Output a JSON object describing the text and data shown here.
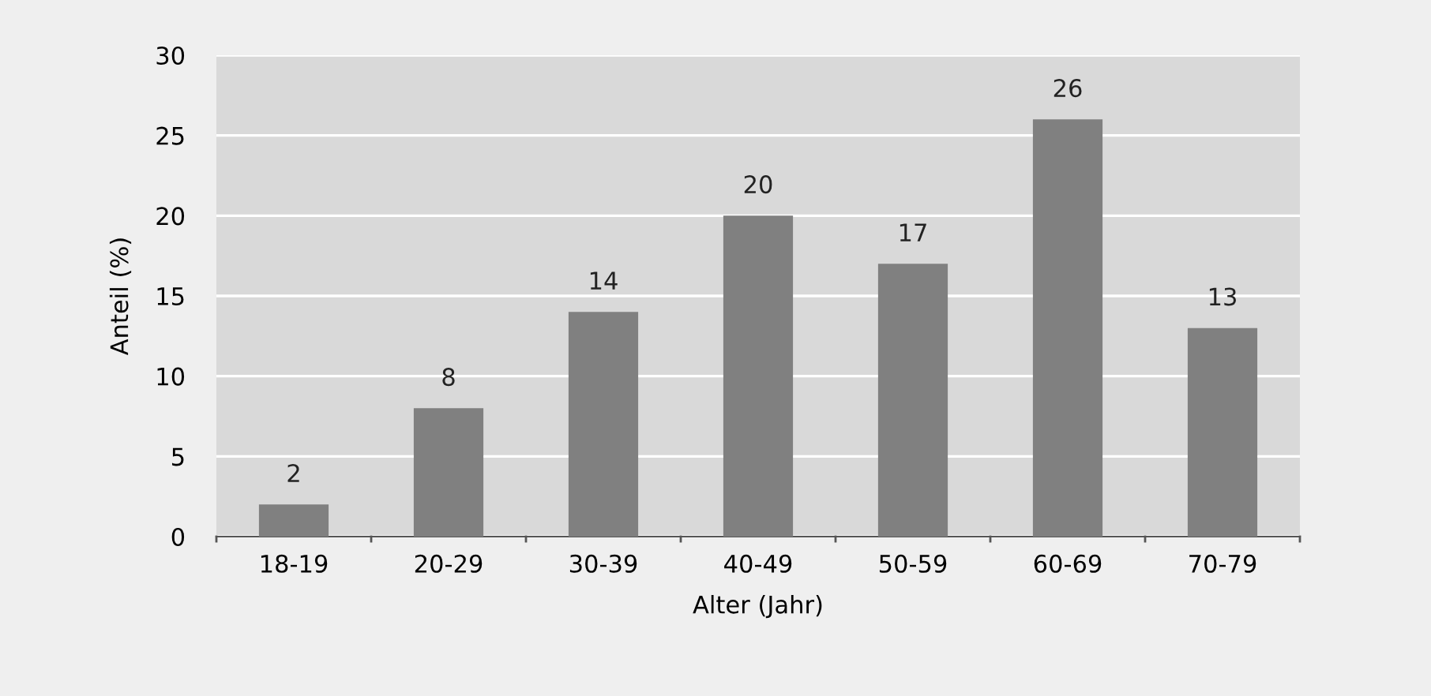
{
  "chart_data": {
    "type": "bar",
    "xlabel": "Alter (Jahr)",
    "ylabel": "Anteil (%)",
    "categories": [
      "18-19",
      "20-29",
      "30-39",
      "40-49",
      "50-59",
      "60-69",
      "70-79"
    ],
    "values": [
      2,
      8,
      14,
      20,
      17,
      26,
      13
    ],
    "color": "#808080",
    "data_labels": true,
    "ylim": [
      0,
      30
    ],
    "yticks": [
      0,
      5,
      10,
      15,
      20,
      25,
      30
    ],
    "grid": "y",
    "legend": false
  }
}
